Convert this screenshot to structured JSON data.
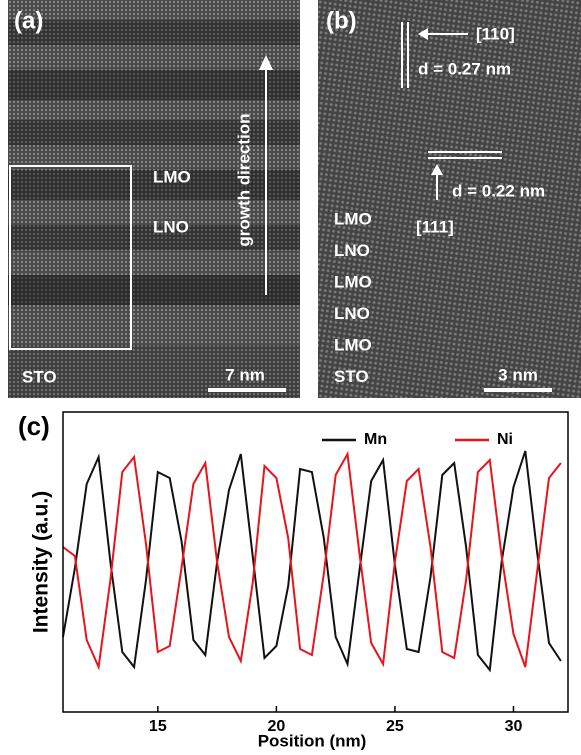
{
  "panel_a": {
    "label": "(a)",
    "layer_top": "LMO",
    "layer_bottom": "LNO",
    "arrow_text": "growth direction",
    "substrate": "STO",
    "scale_bar": "7 nm"
  },
  "panel_b": {
    "label": "(b)",
    "direction_1": "[110]",
    "spacing_1": "d = 0.27 nm",
    "spacing_2": "d = 0.22 nm",
    "direction_2": "[111]",
    "layers": [
      "LMO",
      "LNO",
      "LMO",
      "LNO",
      "LMO",
      "STO"
    ],
    "scale_bar": "3 nm"
  },
  "chart_data": {
    "type": "line",
    "panel_label": "(c)",
    "x_label": "Position (nm)",
    "y_label": "Intensity (a.u.)",
    "x": [
      11,
      11.5,
      12,
      12.5,
      13,
      13.5,
      14,
      14.5,
      15,
      15.5,
      16,
      16.5,
      17,
      17.5,
      18,
      18.5,
      19,
      19.5,
      20,
      20.5,
      21,
      21.5,
      22,
      22.5,
      23,
      23.5,
      24,
      24.5,
      25,
      25.5,
      26,
      26.5,
      27,
      27.5,
      28,
      28.5,
      29,
      29.5,
      30,
      30.5,
      31,
      31.5,
      32
    ],
    "series": [
      {
        "name": "Mn",
        "color": "#111111",
        "values": [
          0.25,
          0.48,
          0.76,
          0.85,
          0.5,
          0.2,
          0.15,
          0.44,
          0.8,
          0.78,
          0.57,
          0.24,
          0.19,
          0.5,
          0.74,
          0.86,
          0.52,
          0.18,
          0.22,
          0.42,
          0.81,
          0.8,
          0.58,
          0.25,
          0.16,
          0.47,
          0.77,
          0.84,
          0.49,
          0.21,
          0.2,
          0.45,
          0.79,
          0.83,
          0.55,
          0.19,
          0.14,
          0.5,
          0.75,
          0.87,
          0.53,
          0.23,
          0.17
        ]
      },
      {
        "name": "Ni",
        "color": "#e8141c",
        "values": [
          0.55,
          0.52,
          0.24,
          0.15,
          0.44,
          0.8,
          0.85,
          0.56,
          0.2,
          0.22,
          0.48,
          0.76,
          0.83,
          0.5,
          0.25,
          0.17,
          0.43,
          0.82,
          0.78,
          0.58,
          0.21,
          0.19,
          0.46,
          0.79,
          0.86,
          0.53,
          0.23,
          0.16,
          0.5,
          0.77,
          0.81,
          0.55,
          0.2,
          0.18,
          0.44,
          0.8,
          0.84,
          0.52,
          0.26,
          0.15,
          0.47,
          0.78,
          0.83
        ]
      }
    ],
    "xlim": [
      11,
      32.3
    ],
    "xticks": [
      15,
      20,
      25,
      30
    ],
    "ylim": [
      0,
      1
    ]
  }
}
